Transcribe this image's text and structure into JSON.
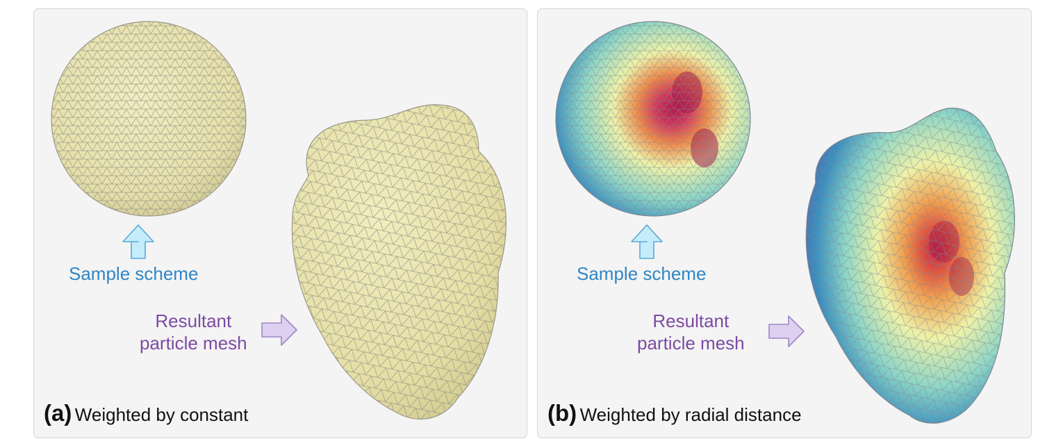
{
  "panels": [
    {
      "id": "a",
      "tag": "(a)",
      "caption": "Weighted by constant",
      "sample_label": "Sample scheme",
      "result_label_line1": "Resultant",
      "result_label_line2": "particle mesh",
      "coloring": "uniform"
    },
    {
      "id": "b",
      "tag": "(b)",
      "caption": "Weighted by radial distance",
      "sample_label": "Sample scheme",
      "result_label_line1": "Resultant",
      "result_label_line2": "particle mesh",
      "coloring": "radial-distance colormap"
    }
  ],
  "colors": {
    "sample_label": "#2f86c4",
    "result_label": "#7c4aa3",
    "mesh_base": "#ede8b2",
    "up_arrow_fill": "#c5ecfa",
    "right_arrow_fill": "#ddd0f0",
    "colormap": [
      "#4a4fa3",
      "#3a8fc0",
      "#8fd6c6",
      "#eef2a8",
      "#f08a4a",
      "#d23a5c",
      "#a0184a"
    ]
  },
  "icons": [
    "up-arrow-icon",
    "right-arrow-icon"
  ]
}
